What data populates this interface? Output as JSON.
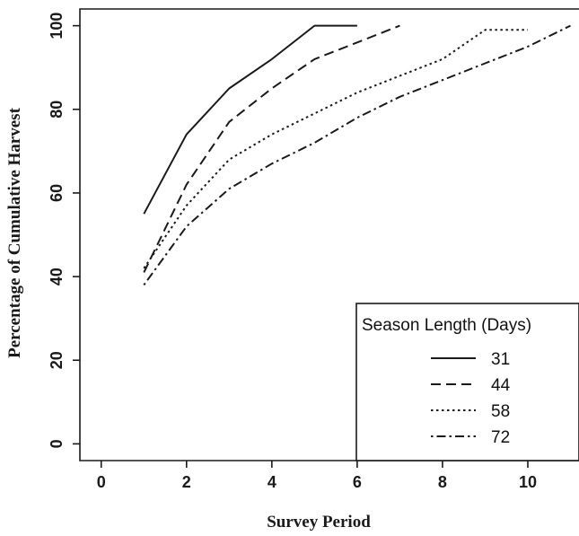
{
  "chart_data": {
    "type": "line",
    "xlabel": "Survey Period",
    "ylabel": "Percentage of Cumulative Harvest",
    "xlim": [
      -0.5,
      11.2
    ],
    "ylim": [
      -4,
      104
    ],
    "xticks": [
      0,
      2,
      4,
      6,
      8,
      10
    ],
    "yticks": [
      0,
      20,
      40,
      60,
      80,
      100
    ],
    "grid": false,
    "legend": {
      "title": "Season Length (Days)",
      "position": "bottom-right"
    },
    "series": [
      {
        "name": "31",
        "dash": "solid",
        "color": "#1a1a1a",
        "x": [
          1,
          2,
          3,
          4,
          5,
          6
        ],
        "y": [
          55,
          74,
          85,
          92,
          100,
          100
        ]
      },
      {
        "name": "44",
        "dash": "dashed",
        "color": "#1a1a1a",
        "x": [
          1,
          2,
          3,
          4,
          5,
          6,
          7
        ],
        "y": [
          41,
          62,
          77,
          85,
          92,
          96,
          100
        ]
      },
      {
        "name": "58",
        "dash": "dotted",
        "color": "#1a1a1a",
        "x": [
          1,
          2,
          3,
          4,
          5,
          6,
          7,
          8,
          9,
          10
        ],
        "y": [
          42,
          57,
          68,
          74,
          79,
          84,
          88,
          92,
          99,
          99
        ]
      },
      {
        "name": "72",
        "dash": "dashdot",
        "color": "#1a1a1a",
        "x": [
          1,
          2,
          3,
          4,
          5,
          6,
          7,
          8,
          9,
          10,
          11
        ],
        "y": [
          38,
          52,
          61,
          67,
          72,
          78,
          83,
          87,
          91,
          95,
          100
        ]
      }
    ]
  }
}
